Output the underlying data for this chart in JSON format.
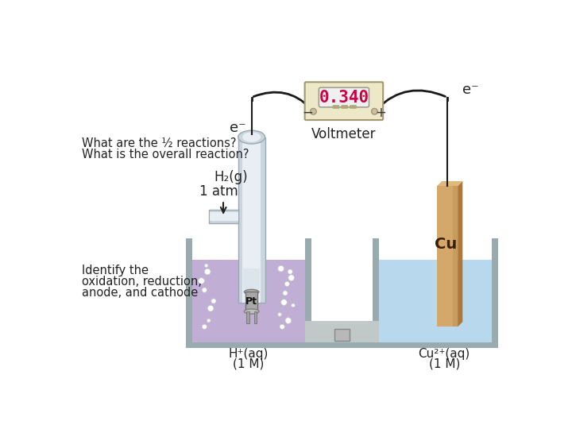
{
  "bg_color": "#ffffff",
  "text_question1": "What are the ½ reactions?",
  "text_question2": "What is the overall reaction?",
  "text_identify1": "Identify the",
  "text_identify2": "oxidation, reduction,",
  "text_identify3": "anode, and cathode",
  "voltmeter_value": "0.340",
  "voltmeter_label": "Voltmeter",
  "h2_label": "H₂(g)",
  "atm_label": "1 atm",
  "pt_label": "Pt",
  "h_plus_label": "H⁺(aq)",
  "h_plus_conc": "(1 M)",
  "cu2_label": "Cu²⁺(aq)",
  "cu2_conc": "(1 M)",
  "cu_label": "Cu",
  "e_minus": "e⁻",
  "left_fluid_color": "#c0aed4",
  "right_fluid_color": "#b8d8ee",
  "container_color": "#9aabb0",
  "cu_face_color": "#d4a86a",
  "cu_side_color": "#b07838",
  "cu_dark_color": "#8a5a20",
  "pt_electrode_color": "#aaaaaa",
  "voltmeter_bg": "#ede8c8",
  "voltmeter_border": "#a09870",
  "voltmeter_display_bg": "#e8e8e8",
  "voltmeter_value_color": "#cc0044",
  "wire_color": "#1a1a1a",
  "salt_bridge_color": "#c0c8c8",
  "bubble_color": "#ffffff",
  "text_color": "#222222"
}
